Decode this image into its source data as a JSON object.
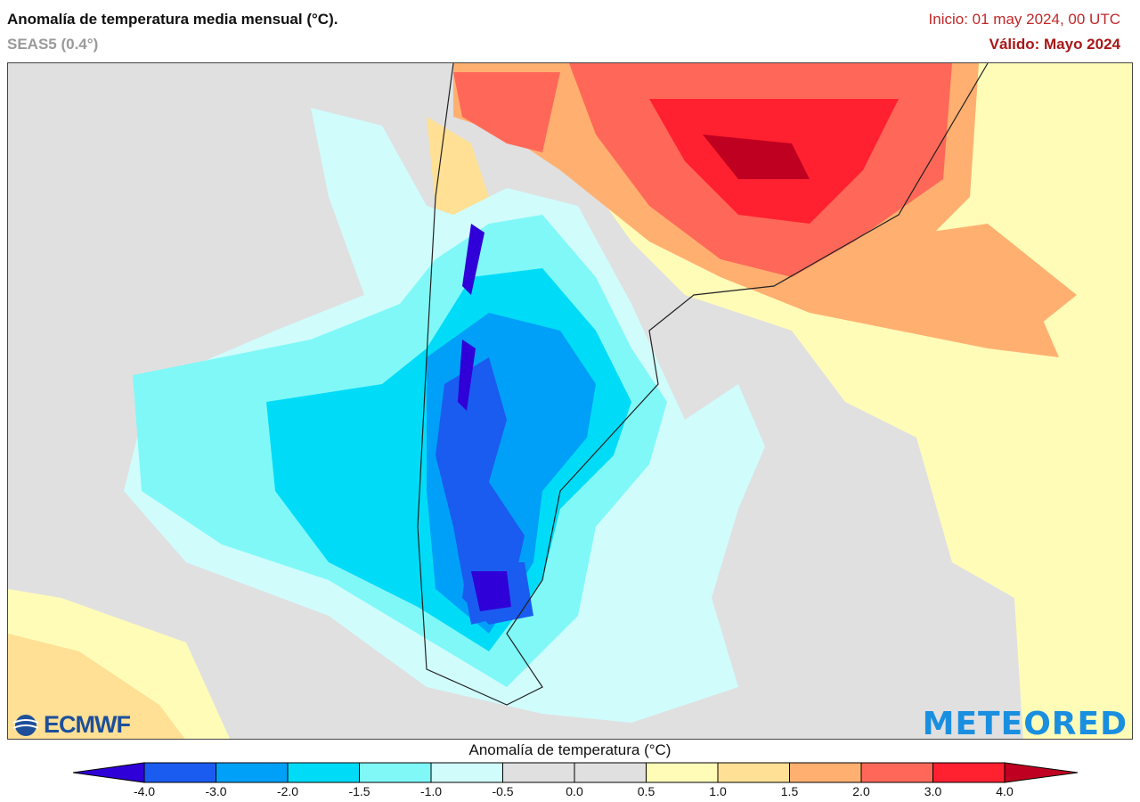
{
  "header": {
    "title": "Anomalía de temperatura media mensual (°C).",
    "model": "SEAS5 (0.4°)",
    "init": "Inicio: 01 may 2024, 00 UTC",
    "valid": "Válido: Mayo 2024"
  },
  "logos": {
    "left": "ECMWF",
    "right": "METEORED"
  },
  "legend": {
    "title": "Anomalía de temperatura (°C)",
    "ticks": [
      "-4.0",
      "-3.0",
      "-2.0",
      "-1.5",
      "-1.0",
      "-0.5",
      "0.0",
      "0.5",
      "1.0",
      "1.5",
      "2.0",
      "3.0",
      "4.0"
    ],
    "low_extend_color": "#3000d8",
    "high_extend_color": "#c00020",
    "colors": [
      "#1a5cf0",
      "#00a0f8",
      "#00dcf8",
      "#80f8f8",
      "#d0fcfc",
      "#e0e0e0",
      "#e0e0e0",
      "#fffcb8",
      "#ffe094",
      "#ffb070",
      "#ff6858",
      "#ff2030"
    ]
  },
  "map": {
    "region": "South America (southern)",
    "background_color": "#e0e0e0"
  }
}
